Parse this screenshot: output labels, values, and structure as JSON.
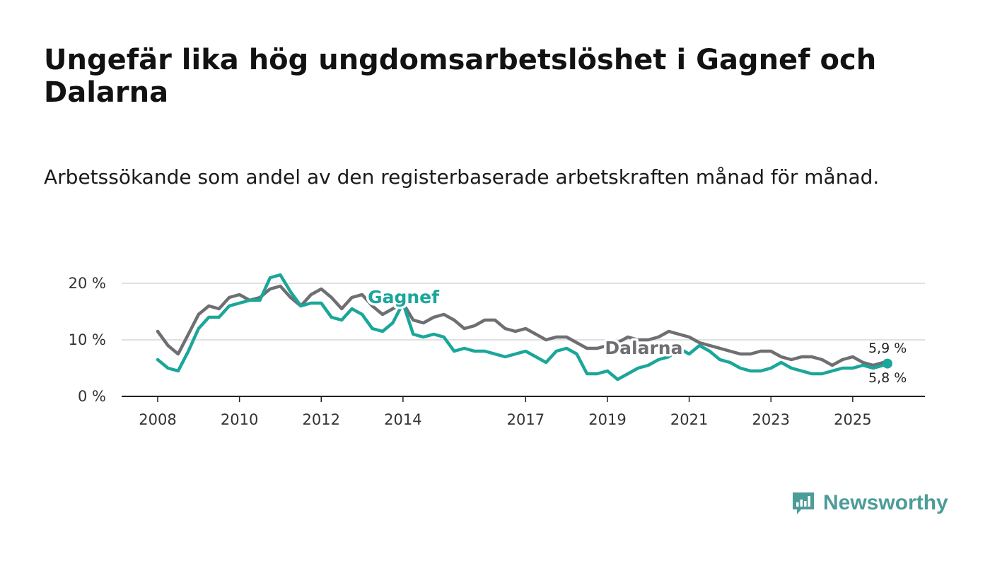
{
  "title": "Ungefär lika hög ungdomsarbetslöshet i Gagnef och Dalarna",
  "subtitle": "Arbetssökande som andel av den registerbaserade arbetskraften månad för månad.",
  "brand": {
    "name": "Newsworthy",
    "color": "#4c9c98"
  },
  "chart_data": {
    "type": "line",
    "title": "",
    "xlabel": "",
    "ylabel": "",
    "xlim": [
      2007.8,
      2026.7
    ],
    "ylim": [
      0,
      22
    ],
    "yticks": [
      0,
      10,
      20
    ],
    "ytick_labels": [
      "0 %",
      "10 %",
      "20 %"
    ],
    "xticks": [
      2008,
      2010,
      2012,
      2014,
      2017,
      2019,
      2021,
      2023,
      2025
    ],
    "xtick_labels": [
      "2008",
      "2010",
      "2012",
      "2014",
      "2017",
      "2019",
      "2021",
      "2023",
      "2025"
    ],
    "grid": true,
    "series": [
      {
        "name": "Dalarna",
        "color": "#6e6e73",
        "end_label": "5,9 %",
        "x": [
          2008.0,
          2008.25,
          2008.5,
          2008.75,
          2009.0,
          2009.25,
          2009.5,
          2009.75,
          2010.0,
          2010.25,
          2010.5,
          2010.75,
          2011.0,
          2011.25,
          2011.5,
          2011.75,
          2012.0,
          2012.25,
          2012.5,
          2012.75,
          2013.0,
          2013.25,
          2013.5,
          2013.75,
          2014.0,
          2014.25,
          2014.5,
          2014.75,
          2015.0,
          2015.25,
          2015.5,
          2015.75,
          2016.0,
          2016.25,
          2016.5,
          2016.75,
          2017.0,
          2017.25,
          2017.5,
          2017.75,
          2018.0,
          2018.25,
          2018.5,
          2018.75,
          2019.0,
          2019.25,
          2019.5,
          2019.75,
          2020.0,
          2020.25,
          2020.5,
          2020.75,
          2021.0,
          2021.25,
          2021.5,
          2021.75,
          2022.0,
          2022.25,
          2022.5,
          2022.75,
          2023.0,
          2023.25,
          2023.5,
          2023.75,
          2024.0,
          2024.25,
          2024.5,
          2024.75,
          2025.0,
          2025.25,
          2025.5,
          2025.75,
          2025.85
        ],
        "values": [
          11.5,
          9.0,
          7.5,
          11.0,
          14.5,
          16.0,
          15.5,
          17.5,
          18.0,
          17.0,
          17.5,
          19.0,
          19.5,
          17.5,
          16.0,
          18.0,
          19.0,
          17.5,
          15.5,
          17.5,
          18.0,
          16.0,
          14.5,
          15.5,
          16.5,
          13.5,
          13.0,
          14.0,
          14.5,
          13.5,
          12.0,
          12.5,
          13.5,
          13.5,
          12.0,
          11.5,
          12.0,
          11.0,
          10.0,
          10.5,
          10.5,
          9.5,
          8.5,
          8.5,
          9.0,
          9.5,
          10.5,
          10.0,
          10.0,
          10.5,
          11.5,
          11.0,
          10.5,
          9.5,
          9.0,
          8.5,
          8.0,
          7.5,
          7.5,
          8.0,
          8.0,
          7.0,
          6.5,
          7.0,
          7.0,
          6.5,
          5.5,
          6.5,
          7.0,
          6.0,
          5.5,
          6.0,
          5.9
        ]
      },
      {
        "name": "Gagnef",
        "color": "#1ba69a",
        "end_label": "5,8 %",
        "x": [
          2008.0,
          2008.25,
          2008.5,
          2008.75,
          2009.0,
          2009.25,
          2009.5,
          2009.75,
          2010.0,
          2010.25,
          2010.5,
          2010.75,
          2011.0,
          2011.25,
          2011.5,
          2011.75,
          2012.0,
          2012.25,
          2012.5,
          2012.75,
          2013.0,
          2013.25,
          2013.5,
          2013.75,
          2014.0,
          2014.25,
          2014.5,
          2014.75,
          2015.0,
          2015.25,
          2015.5,
          2015.75,
          2016.0,
          2016.25,
          2016.5,
          2016.75,
          2017.0,
          2017.25,
          2017.5,
          2017.75,
          2018.0,
          2018.25,
          2018.5,
          2018.75,
          2019.0,
          2019.25,
          2019.5,
          2019.75,
          2020.0,
          2020.25,
          2020.5,
          2020.75,
          2021.0,
          2021.25,
          2021.5,
          2021.75,
          2022.0,
          2022.25,
          2022.5,
          2022.75,
          2023.0,
          2023.25,
          2023.5,
          2023.75,
          2024.0,
          2024.25,
          2024.5,
          2024.75,
          2025.0,
          2025.25,
          2025.5,
          2025.75,
          2025.85
        ],
        "values": [
          6.5,
          5.0,
          4.5,
          8.0,
          12.0,
          14.0,
          14.0,
          16.0,
          16.5,
          17.0,
          17.0,
          21.0,
          21.5,
          18.5,
          16.0,
          16.5,
          16.5,
          14.0,
          13.5,
          15.5,
          14.5,
          12.0,
          11.5,
          13.0,
          16.5,
          11.0,
          10.5,
          11.0,
          10.5,
          8.0,
          8.5,
          8.0,
          8.0,
          7.5,
          7.0,
          7.5,
          8.0,
          7.0,
          6.0,
          8.0,
          8.5,
          7.5,
          4.0,
          4.0,
          4.5,
          3.0,
          4.0,
          5.0,
          5.5,
          6.5,
          7.0,
          8.5,
          7.5,
          9.0,
          8.0,
          6.5,
          6.0,
          5.0,
          4.5,
          4.5,
          5.0,
          6.0,
          5.0,
          4.5,
          4.0,
          4.0,
          4.5,
          5.0,
          5.0,
          5.5,
          5.0,
          5.5,
          5.8
        ]
      }
    ],
    "annotations": [
      {
        "text": "Gagnef",
        "series": "Gagnef",
        "x": 2013.0,
        "y": 17.5
      },
      {
        "text": "Dalarna",
        "series": "Dalarna",
        "x": 2018.8,
        "y": 8.5
      }
    ]
  }
}
